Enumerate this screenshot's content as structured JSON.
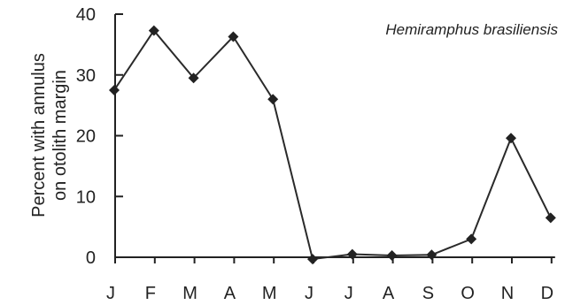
{
  "chart_data": {
    "type": "line",
    "categories": [
      "J",
      "F",
      "M",
      "A",
      "M",
      "J",
      "J",
      "A",
      "S",
      "O",
      "N",
      "D"
    ],
    "series": [
      {
        "values": [
          27.5,
          37.3,
          29.5,
          36.3,
          26,
          -0.3,
          0.5,
          0.3,
          0.4,
          3,
          19.6,
          6.5
        ]
      }
    ],
    "ylabel_line1": "Percent with annulus",
    "ylabel_line2": "on otolith margin",
    "annotation": "Hemiramphus brasiliensis",
    "yticks": [
      0,
      10,
      20,
      30,
      40
    ],
    "ylim": [
      0,
      40
    ],
    "marker": "diamond",
    "line_color": "#2a2a2a",
    "grid": false
  }
}
